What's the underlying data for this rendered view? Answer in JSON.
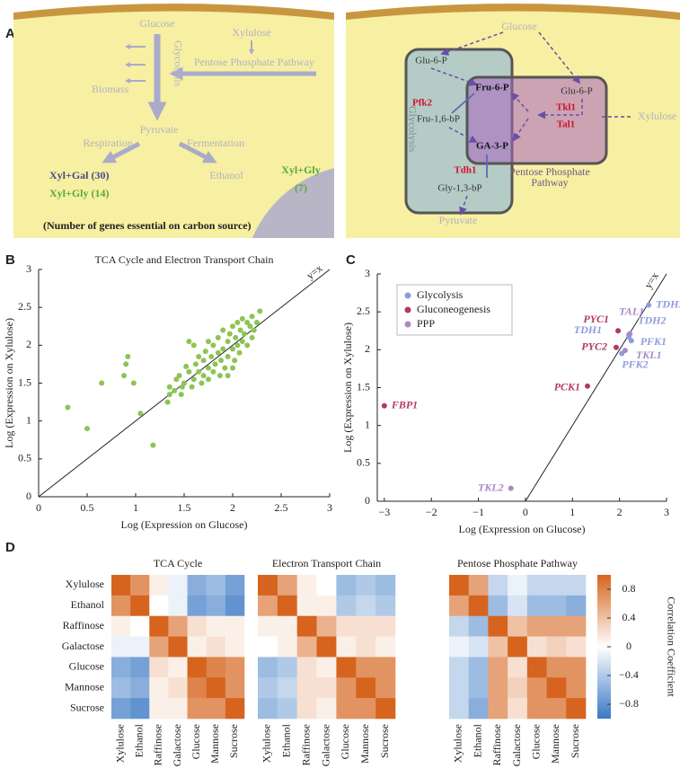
{
  "panel_labels": {
    "a": "A",
    "b": "B",
    "c": "C",
    "d": "D"
  },
  "panel_a": {
    "left": {
      "glucose": "Glucose",
      "xylulose": "Xylulose",
      "glycolysis": "Glycolysis",
      "ppp": "Pentose Phosphate Pathway",
      "biomass": "Biomass",
      "pyruvate": "Pyruvate",
      "respiration": "Respiration",
      "fermentation": "Fermentation",
      "ethanol": "Ethanol",
      "xyl_gal": "Xyl+Gal (30)",
      "xyl_gly": "Xyl+Gly (14)",
      "xyl_gly_cell": [
        "Xyl+Gly",
        "(7)"
      ],
      "caption": "(Number of genes essential on carbon source)"
    },
    "right": {
      "glucose": "Glucose",
      "glu6p_a": "Glu-6-P",
      "glu6p_b": "Glu-6-P",
      "fru6p": "Fru-6-P",
      "pfk2": "Pfk2",
      "fru16bp": "Fru-1,6-bP",
      "tkl1": "Tkl1",
      "tal1": "Tal1",
      "xylulose": "Xylulose",
      "ga3p": "GA-3-P",
      "tdh1": "Tdh1",
      "gly13bp": "Gly-1,3-bP",
      "glycolysis": "Glycolysis",
      "ppp": [
        "Pentose Phosphate",
        "Pathway"
      ],
      "pyruvate": "Pyruvate"
    }
  },
  "colorbar": {
    "label": "Correlation Coefficient",
    "zlim": [
      -1,
      1
    ],
    "ticks": [
      0.8,
      0.4,
      0,
      {
        "value": -0.4,
        "label": "−0.4"
      },
      {
        "value": -0.8,
        "label": "−0.8"
      }
    ]
  },
  "chart_data": [
    {
      "type": "scatter",
      "title": "TCA Cycle and Electron Transport Chain",
      "x_label": "Log (Expression on Glucose)",
      "y_label": "Log (Expression on Xylulose)",
      "reference_line": "y=x",
      "color": "#8dc453",
      "x": [
        0.3,
        0.5,
        0.65,
        0.88,
        0.9,
        0.92,
        0.98,
        1.05,
        1.18,
        1.33,
        1.35,
        1.35,
        1.4,
        1.42,
        1.45,
        1.47,
        1.5,
        1.52,
        1.55,
        1.55,
        1.58,
        1.6,
        1.62,
        1.65,
        1.68,
        1.7,
        1.7,
        1.72,
        1.75,
        1.75,
        1.78,
        1.8,
        1.8,
        1.82,
        1.85,
        1.85,
        1.87,
        1.88,
        1.9,
        1.9,
        1.92,
        1.95,
        1.95,
        1.97,
        2.0,
        2.0,
        2.02,
        2.03,
        2.05,
        2.05,
        2.07,
        2.08,
        2.1,
        2.1,
        2.12,
        2.15,
        2.15,
        2.18,
        2.2,
        2.2,
        2.22,
        2.25,
        2.28,
        2.0,
        1.95,
        1.6,
        1.75,
        1.65,
        1.48
      ],
      "values": [
        1.18,
        0.9,
        1.5,
        1.6,
        1.75,
        1.85,
        1.5,
        1.1,
        0.68,
        1.25,
        1.45,
        1.35,
        1.4,
        1.55,
        1.6,
        1.35,
        1.5,
        1.72,
        1.65,
        2.05,
        1.45,
        1.55,
        1.75,
        1.65,
        1.5,
        1.8,
        1.6,
        1.92,
        1.7,
        1.55,
        1.85,
        2.0,
        1.65,
        1.75,
        1.9,
        2.1,
        1.6,
        1.8,
        2.2,
        1.95,
        1.7,
        1.85,
        2.05,
        2.15,
        1.95,
        2.25,
        1.8,
        2.1,
        2.0,
        2.3,
        1.9,
        2.2,
        2.35,
        2.05,
        2.15,
        2.3,
        2.0,
        2.25,
        2.38,
        2.1,
        2.2,
        2.3,
        2.45,
        1.7,
        1.6,
        2.0,
        2.05,
        1.85,
        1.45
      ],
      "xlim": [
        0,
        3
      ],
      "ylim": [
        0,
        3
      ],
      "xticks": [
        0,
        0.5,
        1,
        1.5,
        2,
        2.5,
        3
      ],
      "yticks": [
        0,
        0.5,
        1,
        1.5,
        2,
        2.5,
        3
      ]
    },
    {
      "type": "scatter",
      "x_label": "Log (Expression on Glucose)",
      "y_label": "Log (Expression on Xylulose)",
      "reference_line": "y=x",
      "legend": "upper left",
      "series": [
        {
          "name": "Glycolysis",
          "color": "#8f9cdb",
          "labels": [
            "TDH3",
            "TDH1",
            "TDH2",
            "PFK1",
            "PFK2"
          ],
          "x": [
            2.62,
            2.2,
            2.2,
            2.25,
            2.05
          ],
          "values": [
            2.59,
            2.2,
            2.17,
            2.12,
            1.95
          ]
        },
        {
          "name": "Gluconeogenesis",
          "color": "#b33a5c",
          "labels": [
            "FBP1",
            "PCK1",
            "PYC1",
            "PYC2"
          ],
          "x": [
            -3.0,
            1.32,
            1.97,
            1.93
          ],
          "values": [
            1.26,
            1.52,
            2.25,
            2.03
          ]
        },
        {
          "name": "PPP",
          "color": "#a98ac7",
          "labels": [
            "TAL1",
            "TKL1",
            "TKL2"
          ],
          "x": [
            2.22,
            2.12,
            -0.31
          ],
          "values": [
            2.21,
            1.99,
            0.17
          ]
        }
      ],
      "xlim": [
        -3.15,
        3
      ],
      "ylim": [
        0,
        3
      ],
      "xticks": [
        {
          "value": -3,
          "label": "−3"
        },
        {
          "value": -2,
          "label": "−2"
        },
        {
          "value": -1,
          "label": "−1"
        },
        0,
        1,
        2,
        3
      ],
      "yticks": [
        0,
        0.5,
        1,
        1.5,
        2,
        2.5,
        3
      ]
    },
    {
      "type": "heatmap",
      "title": "TCA Cycle",
      "categories": [
        "Xylulose",
        "Ethanol",
        "Raffinose",
        "Galactose",
        "Glucose",
        "Mannose",
        "Sucrose"
      ],
      "values": [
        [
          1,
          0.7,
          0.1,
          -0.1,
          -0.6,
          -0.5,
          -0.7
        ],
        [
          0.7,
          1,
          0.0,
          -0.1,
          -0.7,
          -0.6,
          -0.8
        ],
        [
          0.1,
          0.0,
          1,
          0.6,
          0.2,
          0.1,
          0.1
        ],
        [
          -0.1,
          -0.1,
          0.6,
          1,
          0.1,
          0.2,
          0.1
        ],
        [
          -0.6,
          -0.7,
          0.2,
          0.1,
          1,
          0.8,
          0.7
        ],
        [
          -0.5,
          -0.6,
          0.1,
          0.2,
          0.8,
          1,
          0.7
        ],
        [
          -0.7,
          -0.8,
          0.1,
          0.1,
          0.7,
          0.7,
          1
        ]
      ]
    },
    {
      "type": "heatmap",
      "title": "Electron Transport Chain",
      "categories": [
        "Xylulose",
        "Ethanol",
        "Raffinose",
        "Galactose",
        "Glucose",
        "Mannose",
        "Sucrose"
      ],
      "values": [
        [
          1,
          0.6,
          0.1,
          0.0,
          -0.5,
          -0.4,
          -0.5
        ],
        [
          0.6,
          1,
          0.1,
          0.1,
          -0.4,
          -0.3,
          -0.4
        ],
        [
          0.1,
          0.1,
          1,
          0.5,
          0.2,
          0.2,
          0.2
        ],
        [
          0.0,
          0.1,
          0.5,
          1,
          0.1,
          0.2,
          0.1
        ],
        [
          -0.5,
          -0.4,
          0.2,
          0.1,
          1,
          0.7,
          0.7
        ],
        [
          -0.4,
          -0.3,
          0.2,
          0.2,
          0.7,
          1,
          0.7
        ],
        [
          -0.5,
          -0.4,
          0.2,
          0.1,
          0.7,
          0.7,
          1
        ]
      ]
    },
    {
      "type": "heatmap",
      "title": "Pentose Phosphate Pathway",
      "categories": [
        "Xylulose",
        "Ethanol",
        "Raffinose",
        "Galactose",
        "Glucose",
        "Mannose",
        "Sucrose"
      ],
      "values": [
        [
          1,
          0.6,
          -0.3,
          -0.1,
          -0.3,
          -0.3,
          -0.3
        ],
        [
          0.6,
          1,
          -0.5,
          -0.2,
          -0.5,
          -0.5,
          -0.6
        ],
        [
          -0.3,
          -0.5,
          1,
          0.4,
          0.6,
          0.6,
          0.6
        ],
        [
          -0.1,
          -0.2,
          0.4,
          1,
          0.2,
          0.3,
          0.2
        ],
        [
          -0.3,
          -0.5,
          0.6,
          0.2,
          1,
          0.7,
          0.7
        ],
        [
          -0.3,
          -0.5,
          0.6,
          0.3,
          0.7,
          1,
          0.7
        ],
        [
          -0.3,
          -0.6,
          0.6,
          0.2,
          0.7,
          0.7,
          1
        ]
      ]
    }
  ]
}
